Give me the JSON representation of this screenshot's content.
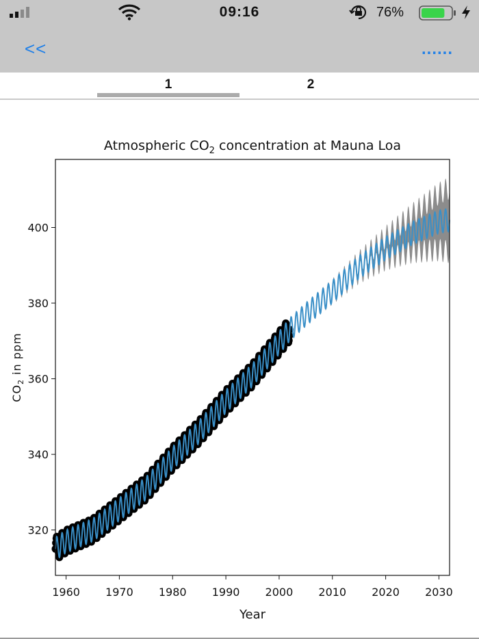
{
  "status_bar": {
    "time": "09:16",
    "battery_percent": "76%",
    "battery_level": 0.76,
    "icons": [
      "signal-icon",
      "wifi-icon",
      "rotation-lock-icon",
      "battery-icon",
      "charging-icon"
    ]
  },
  "nav": {
    "back_label": "<<",
    "more_label": "......"
  },
  "tabs": [
    {
      "label": "1",
      "active": true
    },
    {
      "label": "2",
      "active": false
    }
  ],
  "colors": {
    "accent": "#1e7fe8",
    "bar_bg": "#c7c7c7",
    "prediction": "#3a8fc7",
    "observed": "#000000",
    "uncertainty": "#7f7f7f"
  },
  "chart_data": {
    "type": "line",
    "title_main": "Atmospheric CO",
    "title_sub": "2",
    "title_rest": " concentration at Mauna Loa",
    "xlabel": "Year",
    "ylabel_main": "CO",
    "ylabel_sub": "2",
    "ylabel_rest": " in ppm",
    "xlim": [
      1958,
      2032
    ],
    "ylim": [
      308,
      418
    ],
    "xticks": [
      1960,
      1970,
      1980,
      1990,
      2000,
      2010,
      2020,
      2030
    ],
    "yticks": [
      320,
      340,
      360,
      380,
      400
    ],
    "grid": false,
    "seasonal_amplitude_ppm": 3,
    "series": [
      {
        "role": "observed",
        "style": "black markers",
        "x_range": [
          1958,
          2002
        ],
        "x": [
          1958,
          1960,
          1965,
          1970,
          1975,
          1980,
          1985,
          1990,
          1995,
          2000,
          2002
        ],
        "y": [
          315,
          317,
          320,
          325.5,
          331,
          339,
          346,
          354,
          361,
          369.5,
          373
        ]
      },
      {
        "role": "prediction",
        "style": "blue line",
        "x_range": [
          1958,
          2032
        ],
        "x": [
          1958,
          1960,
          1965,
          1970,
          1975,
          1980,
          1985,
          1990,
          1995,
          2000,
          2002,
          2005,
          2010,
          2015,
          2020,
          2025,
          2030,
          2032
        ],
        "y": [
          315,
          317,
          320,
          325.5,
          331,
          339,
          346,
          354,
          361,
          369.5,
          373,
          377,
          383,
          389.5,
          394.5,
          398.5,
          401.5,
          402
        ]
      },
      {
        "role": "uncertainty",
        "style": "gray band",
        "x_range": [
          2002,
          2032
        ],
        "x": [
          2002,
          2010,
          2015,
          2020,
          2025,
          2030,
          2032
        ],
        "band_halfwidth": [
          0,
          0.5,
          1.5,
          3,
          5,
          7.5,
          8.5
        ]
      }
    ]
  }
}
